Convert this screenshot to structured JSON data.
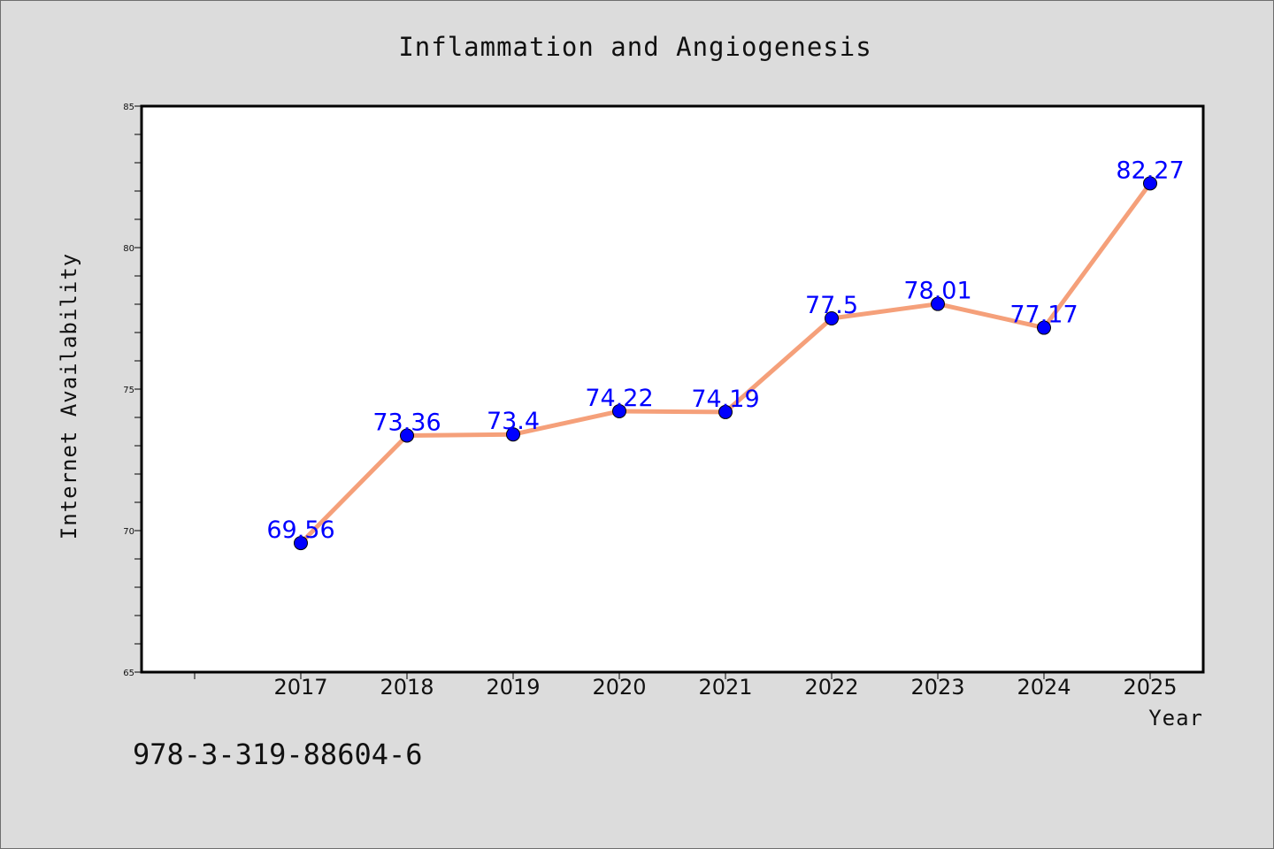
{
  "chart_data": {
    "type": "line",
    "title": "Inflammation and Angiogenesis",
    "xlabel": "Year",
    "ylabel": "Internet Availability",
    "categories": [
      "2017",
      "2018",
      "2019",
      "2020",
      "2021",
      "2022",
      "2023",
      "2024",
      "2025"
    ],
    "series": [
      {
        "values": [
          69.56,
          73.36,
          73.4,
          74.22,
          74.19,
          77.5,
          78.01,
          77.17,
          82.27
        ],
        "data_labels": [
          "69.56",
          "73.36",
          "73.4",
          "74.22",
          "74.19",
          "77.5",
          "78.01",
          "77.17",
          "82.27"
        ],
        "line_color": "#f5a07a",
        "marker_color": "#0000ff"
      }
    ],
    "ylim": [
      65,
      85
    ],
    "yticks": [
      "65",
      "70",
      "75",
      "80",
      "85"
    ],
    "grid": false,
    "legend": "none"
  },
  "footer": {
    "isbn": "978-3-319-88604-6"
  },
  "colors": {
    "background": "#dcdcdc",
    "plot_background": "#ffffff",
    "line": "#f5a07a",
    "marker": "#0000ff",
    "data_label": "#0000ff"
  }
}
